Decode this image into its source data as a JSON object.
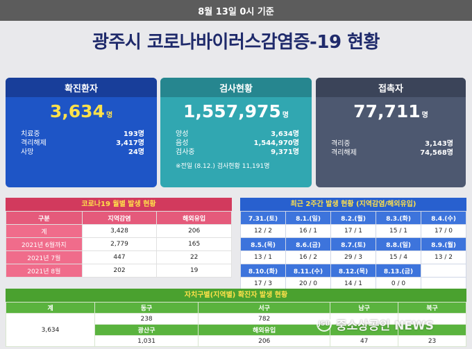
{
  "topbar": {
    "text": "8월 13일 0시 기준"
  },
  "headline": "광주시 코로나바이러스감염증-19 현황",
  "cards": {
    "confirmed": {
      "title": "확진환자",
      "value": "3,634",
      "unit": "명",
      "rows": [
        {
          "label": "치료중",
          "value": "193명"
        },
        {
          "label": "격리해제",
          "value": "3,417명"
        },
        {
          "label": "사망",
          "value": "24명"
        }
      ]
    },
    "tests": {
      "title": "검사현황",
      "value": "1,557,975",
      "unit": "명",
      "rows": [
        {
          "label": "양성",
          "value": "3,634명"
        },
        {
          "label": "음성",
          "value": "1,544,970명"
        },
        {
          "label": "검사중",
          "value": "9,371명"
        }
      ],
      "note": "※전일 (8.12.) 검사현황 11,191명"
    },
    "contacts": {
      "title": "접촉자",
      "value": "77,711",
      "unit": "명",
      "rows": [
        {
          "label": "격리중",
          "value": "3,143명"
        },
        {
          "label": "격리해제",
          "value": "74,568명"
        }
      ]
    }
  },
  "monthly": {
    "title": "코로나19 월별 발생 현황",
    "headers": [
      "구분",
      "지역감염",
      "해외유입"
    ],
    "rows": [
      {
        "label": "계",
        "local": "3,428",
        "overseas": "206"
      },
      {
        "label": "2021년 6월까지",
        "local": "2,779",
        "overseas": "165"
      },
      {
        "label": "2021년 7월",
        "local": "447",
        "overseas": "22"
      },
      {
        "label": "2021년 8월",
        "local": "202",
        "overseas": "19"
      }
    ]
  },
  "weekly": {
    "title": "최근 2주간 발생 현황 (지역감염/해외유입)",
    "rows": [
      {
        "dates": [
          "7.31.(토)",
          "8.1.(일)",
          "8.2.(월)",
          "8.3.(화)",
          "8.4.(수)"
        ],
        "values": [
          "12 / 2",
          "16 / 1",
          "17 / 1",
          "15 / 1",
          "17 / 0"
        ]
      },
      {
        "dates": [
          "8.5.(목)",
          "8.6.(금)",
          "8.7.(토)",
          "8.8.(일)",
          "8.9.(월)"
        ],
        "values": [
          "13 / 1",
          "16 / 2",
          "29 / 3",
          "15 / 4",
          "13 / 2"
        ]
      },
      {
        "dates": [
          "8.10.(화)",
          "8.11.(수)",
          "8.12.(목)",
          "8.13.(금)",
          ""
        ],
        "values": [
          "17 / 3",
          "20 / 0",
          "14 / 1",
          "0 / 0",
          ""
        ]
      }
    ]
  },
  "district": {
    "title": "자치구별(지역별) 확진자 발생 현황",
    "total_label": "계",
    "total_value": "3,634",
    "headers1": [
      "동구",
      "서구",
      "남구",
      "북구"
    ],
    "values1": [
      "238",
      "782",
      "",
      ""
    ],
    "headers2": [
      "광산구",
      "해외유입",
      "",
      ""
    ],
    "values2": [
      "1,031",
      "206",
      "47",
      "23"
    ]
  },
  "watermark": {
    "logo": "JSB",
    "text": "중소상공인 NEWS"
  }
}
